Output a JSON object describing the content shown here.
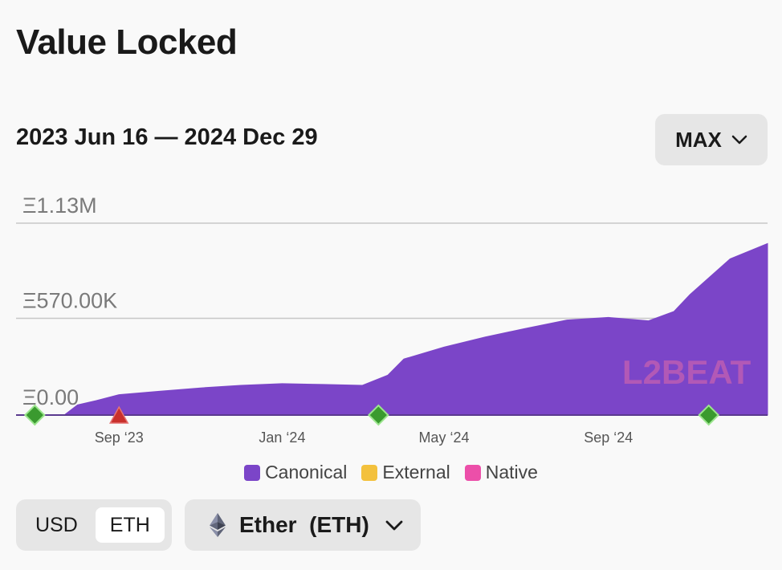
{
  "header": {
    "title": "Value Locked"
  },
  "range": {
    "label": "2023 Jun 16 — 2024 Dec 29"
  },
  "controls": {
    "range_button": "MAX",
    "units": [
      "USD",
      "ETH"
    ],
    "active_unit": "ETH",
    "token_select": "Ether  (ETH)"
  },
  "watermark": "L2BEAT",
  "colors": {
    "canonical": "#7b45c8",
    "external": "#f3c13d",
    "native": "#ec4fa9",
    "milestone": "#3a9a2f",
    "incident": "#c9302c"
  },
  "chart_data": {
    "type": "area",
    "title": "Value Locked",
    "y_ticks": [
      {
        "value": 0,
        "label": "Ξ0.00"
      },
      {
        "value": 570000,
        "label": "Ξ570.00K"
      },
      {
        "value": 1130000,
        "label": "Ξ1.13M"
      }
    ],
    "x_ticks": [
      {
        "date": "2023-09-01",
        "label": "Sep ‘23"
      },
      {
        "date": "2024-01-01",
        "label": "Jan ‘24"
      },
      {
        "date": "2024-05-01",
        "label": "May ‘24"
      },
      {
        "date": "2024-09-01",
        "label": "Sep ‘24"
      }
    ],
    "x_range": [
      "2023-06-16",
      "2024-12-29"
    ],
    "y_range": [
      0,
      1130000
    ],
    "legend": [
      "Canonical",
      "External",
      "Native"
    ],
    "legend_position": "bottom-center",
    "grid": true,
    "series": [
      {
        "name": "Canonical",
        "points": [
          {
            "date": "2023-07-22",
            "value": 0
          },
          {
            "date": "2023-08-01",
            "value": 60000
          },
          {
            "date": "2023-08-15",
            "value": 85000
          },
          {
            "date": "2023-09-01",
            "value": 120000
          },
          {
            "date": "2023-10-01",
            "value": 140000
          },
          {
            "date": "2023-11-01",
            "value": 160000
          },
          {
            "date": "2023-12-01",
            "value": 175000
          },
          {
            "date": "2024-01-01",
            "value": 185000
          },
          {
            "date": "2024-02-01",
            "value": 180000
          },
          {
            "date": "2024-03-01",
            "value": 175000
          },
          {
            "date": "2024-03-20",
            "value": 235000
          },
          {
            "date": "2024-04-01",
            "value": 330000
          },
          {
            "date": "2024-05-01",
            "value": 400000
          },
          {
            "date": "2024-06-01",
            "value": 460000
          },
          {
            "date": "2024-07-01",
            "value": 510000
          },
          {
            "date": "2024-08-01",
            "value": 560000
          },
          {
            "date": "2024-09-01",
            "value": 575000
          },
          {
            "date": "2024-10-01",
            "value": 555000
          },
          {
            "date": "2024-10-20",
            "value": 610000
          },
          {
            "date": "2024-11-01",
            "value": 710000
          },
          {
            "date": "2024-12-01",
            "value": 920000
          },
          {
            "date": "2024-12-29",
            "value": 1010000
          }
        ]
      },
      {
        "name": "External",
        "points": []
      },
      {
        "name": "Native",
        "points": []
      }
    ],
    "milestones": [
      {
        "date": "2023-06-30",
        "kind": "milestone"
      },
      {
        "date": "2023-09-01",
        "kind": "incident"
      },
      {
        "date": "2024-03-13",
        "kind": "milestone"
      },
      {
        "date": "2024-11-15",
        "kind": "milestone"
      }
    ]
  }
}
